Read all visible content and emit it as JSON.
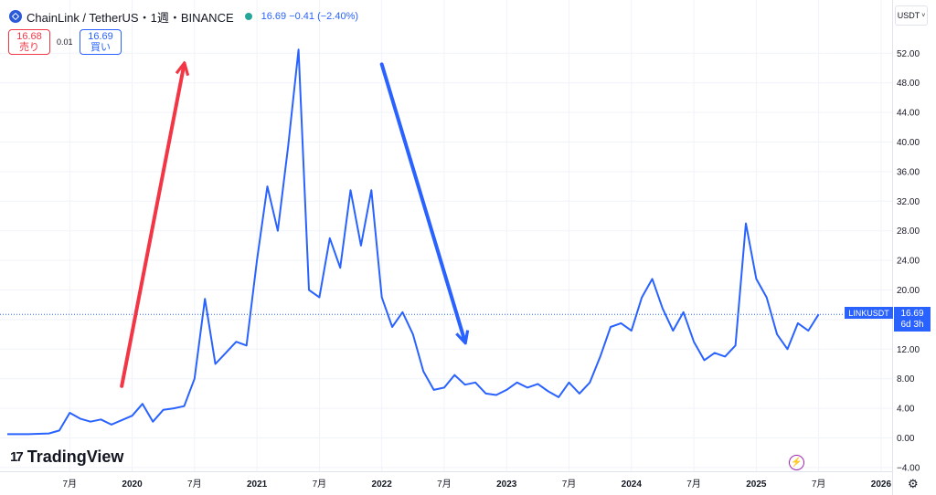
{
  "header": {
    "symbol": "ChainLink / TetherUS・1週・BINANCE",
    "price_line": "16.69 −0.41 (−2.40%)",
    "sell_price": "16.68",
    "sell_label": "売り",
    "spread": "0.01",
    "buy_price": "16.69",
    "buy_label": "買い",
    "currency": "USDT",
    "currency_caret": "˅"
  },
  "branding": {
    "logo_text": "TradingView",
    "logo_icon": "17"
  },
  "price_marker": {
    "symbol": "LINKUSDT",
    "price": "16.69",
    "countdown": "6d 3h"
  },
  "icons": {
    "settings": "gear-icon",
    "bolt": "lightning-icon"
  },
  "colors": {
    "line": "#2962ff",
    "up_arrow": "#f23645",
    "down_arrow": "#2962ff",
    "accent": "#2962ff"
  },
  "chart_data": {
    "type": "line",
    "title": "",
    "xlabel": "",
    "ylabel": "",
    "x_ticks": [
      "7月",
      "2020",
      "7月",
      "2021",
      "7月",
      "2022",
      "7月",
      "2023",
      "7月",
      "2024",
      "7月",
      "2025",
      "7月",
      "2026"
    ],
    "y_ticks": [
      "52.00",
      "48.00",
      "44.00",
      "40.00",
      "36.00",
      "32.00",
      "28.00",
      "24.00",
      "20.00",
      "16.00",
      "12.00",
      "8.00",
      "4.00",
      "0.00",
      "−4.00"
    ],
    "ylim": [
      -4,
      54
    ],
    "x_range": [
      "2019-01",
      "2026-04"
    ],
    "grid": true,
    "series": [
      {
        "values": [
          [
            "2019-01",
            0.5
          ],
          [
            "2019-03",
            0.5
          ],
          [
            "2019-05",
            0.6
          ],
          [
            "2019-06",
            1.0
          ],
          [
            "2019-07",
            3.4
          ],
          [
            "2019-08",
            2.6
          ],
          [
            "2019-09",
            2.2
          ],
          [
            "2019-10",
            2.5
          ],
          [
            "2019-11",
            1.8
          ],
          [
            "2019-12",
            2.4
          ],
          [
            "2020-01",
            3.0
          ],
          [
            "2020-02",
            4.6
          ],
          [
            "2020-03",
            2.2
          ],
          [
            "2020-04",
            3.8
          ],
          [
            "2020-05",
            4.0
          ],
          [
            "2020-06",
            4.3
          ],
          [
            "2020-07",
            8.0
          ],
          [
            "2020-08",
            18.8
          ],
          [
            "2020-09",
            10.0
          ],
          [
            "2020-10",
            11.5
          ],
          [
            "2020-11",
            13.0
          ],
          [
            "2020-12",
            12.5
          ],
          [
            "2021-01",
            24.0
          ],
          [
            "2021-02",
            34.0
          ],
          [
            "2021-03",
            28.0
          ],
          [
            "2021-04",
            39.5
          ],
          [
            "2021-05",
            52.5
          ],
          [
            "2021-06",
            20.0
          ],
          [
            "2021-07",
            19.0
          ],
          [
            "2021-08",
            27.0
          ],
          [
            "2021-09",
            23.0
          ],
          [
            "2021-10",
            33.5
          ],
          [
            "2021-11",
            26.0
          ],
          [
            "2021-12",
            33.5
          ],
          [
            "2022-01",
            19.0
          ],
          [
            "2022-02",
            15.0
          ],
          [
            "2022-03",
            17.0
          ],
          [
            "2022-04",
            14.0
          ],
          [
            "2022-05",
            9.0
          ],
          [
            "2022-06",
            6.5
          ],
          [
            "2022-07",
            6.8
          ],
          [
            "2022-08",
            8.5
          ],
          [
            "2022-09",
            7.2
          ],
          [
            "2022-10",
            7.5
          ],
          [
            "2022-11",
            6.0
          ],
          [
            "2022-12",
            5.8
          ],
          [
            "2023-01",
            6.5
          ],
          [
            "2023-02",
            7.5
          ],
          [
            "2023-03",
            6.8
          ],
          [
            "2023-04",
            7.3
          ],
          [
            "2023-05",
            6.3
          ],
          [
            "2023-06",
            5.5
          ],
          [
            "2023-07",
            7.5
          ],
          [
            "2023-08",
            6.0
          ],
          [
            "2023-09",
            7.5
          ],
          [
            "2023-10",
            11.0
          ],
          [
            "2023-11",
            15.0
          ],
          [
            "2023-12",
            15.5
          ],
          [
            "2024-01",
            14.5
          ],
          [
            "2024-02",
            19.0
          ],
          [
            "2024-03",
            21.5
          ],
          [
            "2024-04",
            17.5
          ],
          [
            "2024-05",
            14.5
          ],
          [
            "2024-06",
            17.0
          ],
          [
            "2024-07",
            13.0
          ],
          [
            "2024-08",
            10.5
          ],
          [
            "2024-09",
            11.5
          ],
          [
            "2024-10",
            11.0
          ],
          [
            "2024-11",
            12.5
          ],
          [
            "2024-12",
            29.0
          ],
          [
            "2025-01",
            21.5
          ],
          [
            "2025-02",
            19.0
          ],
          [
            "2025-03",
            14.0
          ],
          [
            "2025-04",
            12.0
          ],
          [
            "2025-05",
            15.5
          ],
          [
            "2025-06",
            14.5
          ],
          [
            "2025-07",
            16.7
          ]
        ]
      }
    ],
    "annotations": [
      {
        "type": "arrow",
        "from": [
          "2019-12",
          7.0
        ],
        "to": [
          "2020-06",
          50.5
        ]
      },
      {
        "type": "arrow",
        "from": [
          "2022-01",
          50.5
        ],
        "to": [
          "2022-09",
          13.0
        ]
      }
    ],
    "last_price": 16.69
  }
}
